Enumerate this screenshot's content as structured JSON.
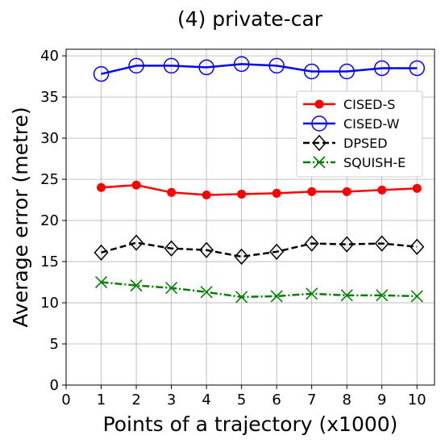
{
  "chart_data": {
    "type": "line",
    "title": "(4) private-car",
    "xlabel": "Points of a trajectory (x1000)",
    "ylabel": "Average error (metre)",
    "xlim": [
      0,
      10.5
    ],
    "ylim": [
      0,
      40.8
    ],
    "xticks": [
      0,
      1,
      2,
      3,
      4,
      5,
      6,
      7,
      8,
      9,
      10
    ],
    "yticks": [
      0,
      5,
      10,
      15,
      20,
      25,
      30,
      35,
      40
    ],
    "grid": true,
    "legend_position": "upper-right",
    "x": [
      1,
      2,
      3,
      4,
      5,
      6,
      7,
      8,
      9,
      10
    ],
    "series": [
      {
        "name": "CISED-S",
        "color": "#ff0000",
        "marker": "filled-circle",
        "line_style": "solid",
        "values": [
          24.0,
          24.3,
          23.4,
          23.1,
          23.2,
          23.3,
          23.5,
          23.5,
          23.7,
          23.9
        ]
      },
      {
        "name": "CISED-W",
        "color": "#0000ff",
        "marker": "open-circle",
        "line_style": "solid",
        "values": [
          37.8,
          38.8,
          38.8,
          38.6,
          39.0,
          38.8,
          38.1,
          38.1,
          38.5,
          38.5
        ]
      },
      {
        "name": "DPSED",
        "color": "#000000",
        "marker": "open-diamond",
        "line_style": "dashed",
        "values": [
          16.1,
          17.3,
          16.6,
          16.4,
          15.6,
          16.2,
          17.2,
          17.1,
          17.2,
          16.8
        ]
      },
      {
        "name": "SQUISH-E",
        "color": "#008000",
        "marker": "x",
        "line_style": "dashdot",
        "values": [
          12.5,
          12.1,
          11.8,
          11.3,
          10.7,
          10.8,
          11.1,
          10.9,
          10.9,
          10.8
        ]
      }
    ]
  }
}
